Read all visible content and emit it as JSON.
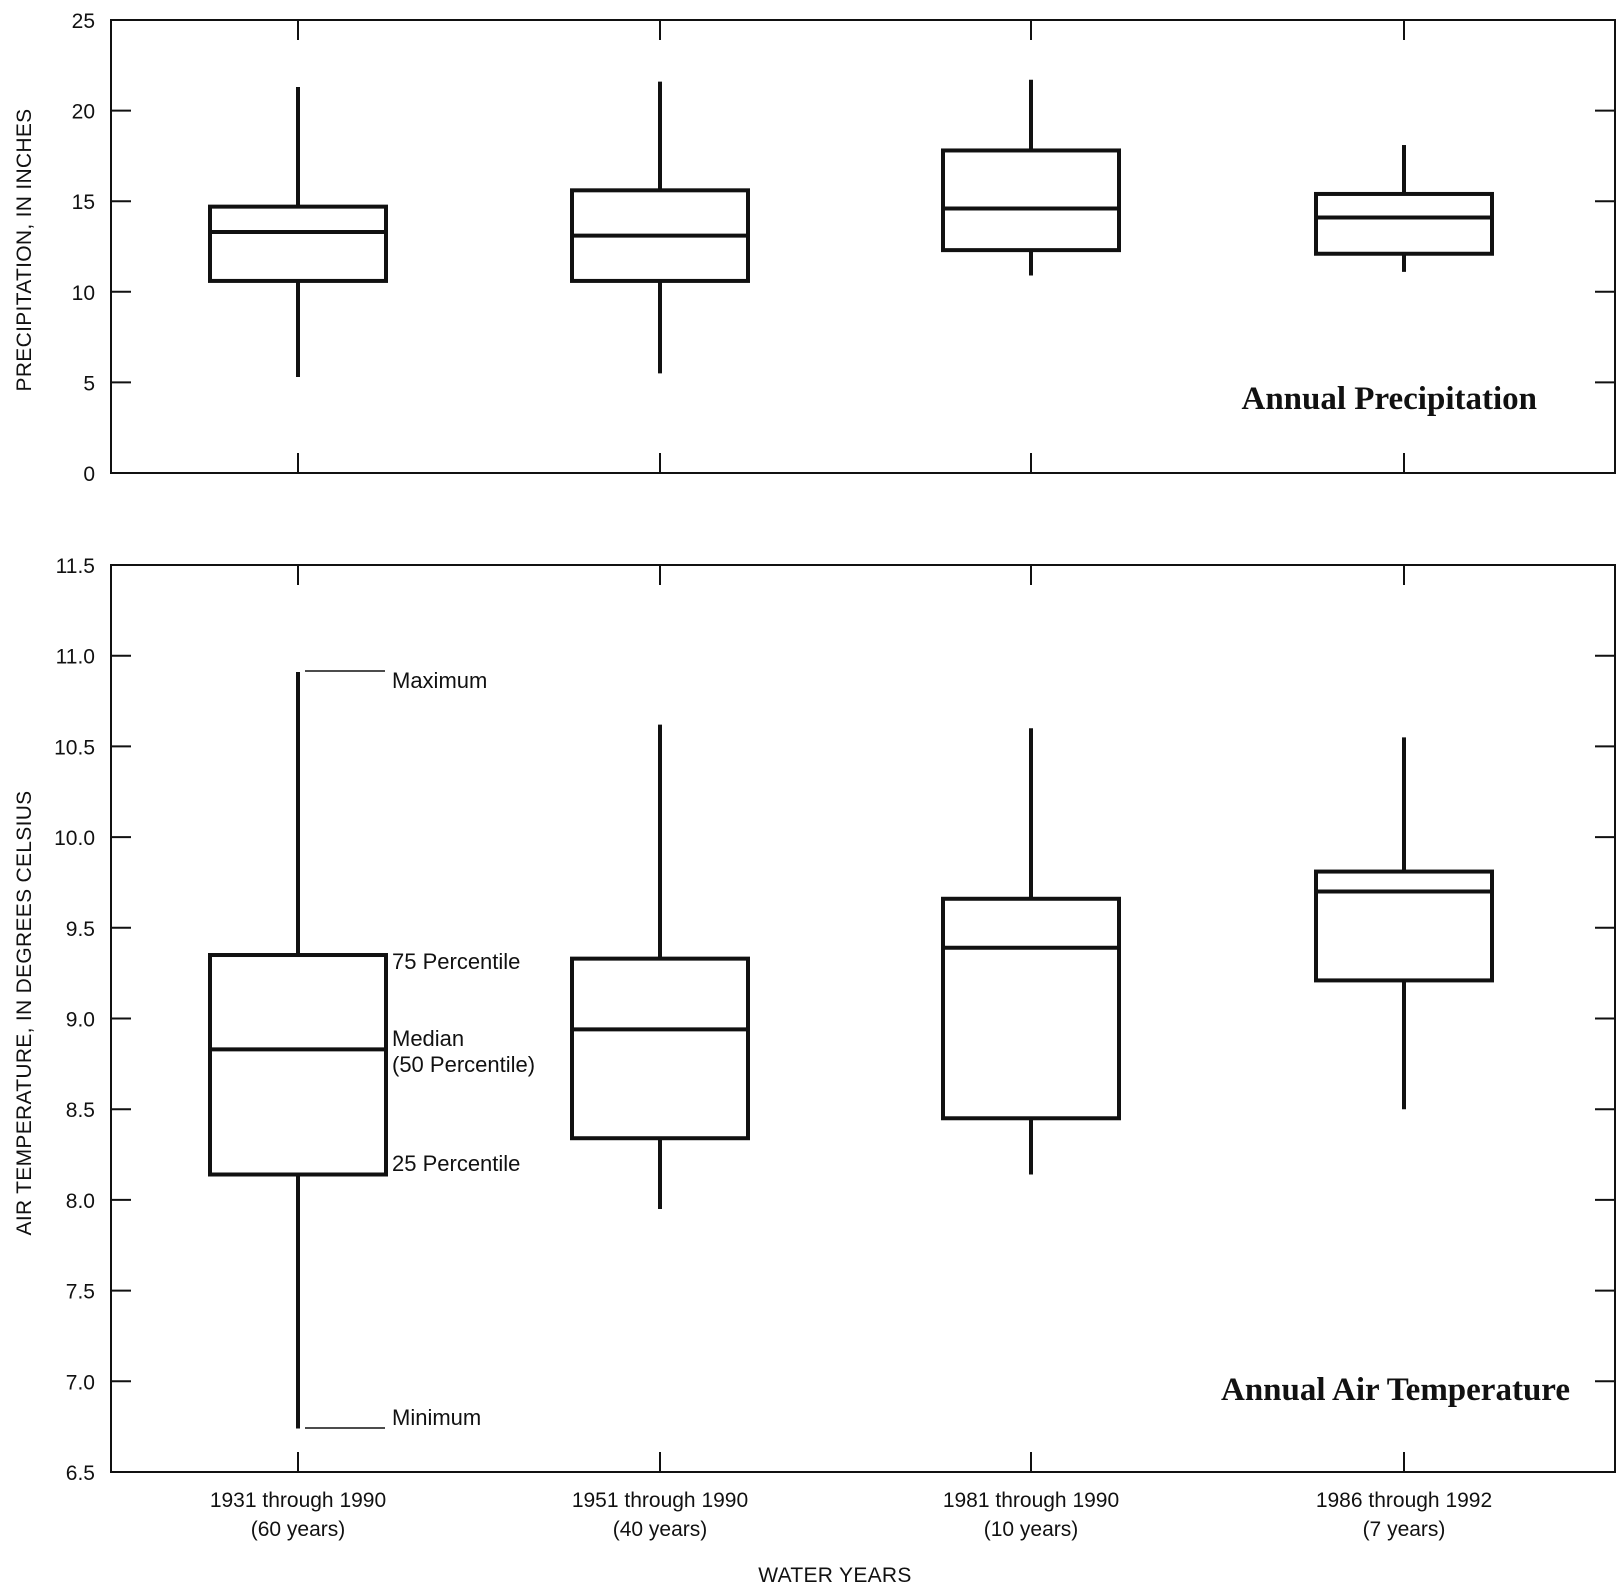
{
  "chart_data": [
    {
      "type": "box",
      "title": "Annual Precipitation",
      "ylabel": "PRECIPITATION, IN INCHES",
      "ylim": [
        0,
        25
      ],
      "yticks": [
        "0",
        "5",
        "10",
        "15",
        "20",
        "25"
      ],
      "boxes": [
        {
          "min": 5.3,
          "q1": 10.6,
          "median": 13.3,
          "q3": 14.7,
          "max": 21.3
        },
        {
          "min": 5.5,
          "q1": 10.6,
          "median": 13.1,
          "q3": 15.6,
          "max": 21.6
        },
        {
          "min": 10.9,
          "q1": 12.3,
          "median": 14.6,
          "q3": 17.8,
          "max": 21.7
        },
        {
          "min": 11.1,
          "q1": 12.1,
          "median": 14.1,
          "q3": 15.4,
          "max": 18.1
        }
      ]
    },
    {
      "type": "box",
      "title": "Annual Air Temperature",
      "ylabel": "AIR TEMPERATURE, IN DEGREES CELSIUS",
      "ylim": [
        6.5,
        11.5
      ],
      "yticks": [
        "6.5",
        "7.0",
        "7.5",
        "8.0",
        "8.5",
        "9.0",
        "9.5",
        "10.0",
        "10.5",
        "11.0",
        "11.5"
      ],
      "xlabel": "WATER YEARS",
      "categories": [
        {
          "line1": "1931 through 1990",
          "line2": "(60 years)"
        },
        {
          "line1": "1951 through 1990",
          "line2": "(40 years)"
        },
        {
          "line1": "1981 through 1990",
          "line2": "(10 years)"
        },
        {
          "line1": "1986 through 1992",
          "line2": "(7 years)"
        }
      ],
      "boxes": [
        {
          "min": 6.74,
          "q1": 8.14,
          "median": 8.83,
          "q3": 9.35,
          "max": 10.91
        },
        {
          "min": 7.95,
          "q1": 8.34,
          "median": 8.94,
          "q3": 9.33,
          "max": 10.62
        },
        {
          "min": 8.14,
          "q1": 8.45,
          "median": 9.39,
          "q3": 9.66,
          "max": 10.6
        },
        {
          "min": 8.5,
          "q1": 9.21,
          "median": 9.7,
          "q3": 9.81,
          "max": 10.55
        }
      ],
      "annotations": {
        "maximum": "Maximum",
        "p75": "75 Percentile",
        "median_1": "Median",
        "median_2": "(50 Percentile)",
        "p25": "25 Percentile",
        "minimum": "Minimum"
      }
    }
  ]
}
